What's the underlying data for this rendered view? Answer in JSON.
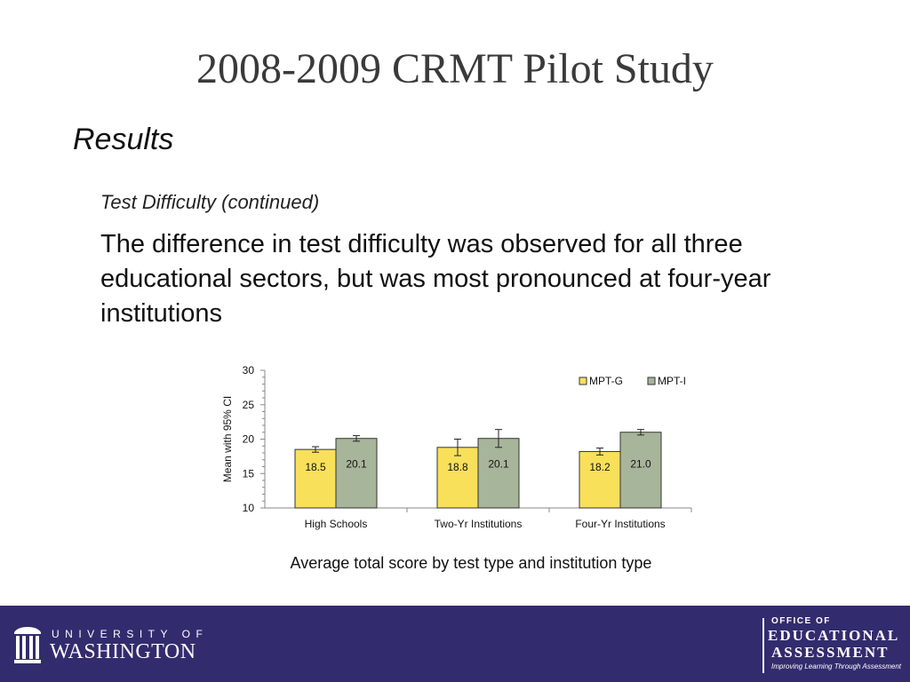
{
  "slide": {
    "title": "2008-2009 CRMT Pilot Study",
    "section": "Results",
    "subheading": "Test Difficulty (continued)",
    "body": "The difference in test difficulty was observed for all three educational sectors, but was most pronounced at four-year institutions",
    "caption": "Average total score by test type and institution type"
  },
  "chart_data": {
    "type": "bar",
    "title": "",
    "xlabel": "",
    "ylabel": "Mean with 95% CI",
    "ylim": [
      10,
      30
    ],
    "yticks": [
      "10",
      "15",
      "20",
      "25",
      "30"
    ],
    "categories": [
      "High Schools",
      "Two-Yr Institutions",
      "Four-Yr Institutions"
    ],
    "legend_position": "top-right",
    "error_bars": true,
    "series": [
      {
        "name": "MPT-G",
        "color": "#f9e05a",
        "values": [
          18.5,
          18.8,
          18.2
        ],
        "labels": [
          "18.5",
          "18.8",
          "18.2"
        ],
        "ci_low": [
          18.1,
          17.6,
          17.7
        ],
        "ci_high": [
          18.9,
          20.0,
          18.7
        ]
      },
      {
        "name": "MPT-I",
        "color": "#a7b59a",
        "values": [
          20.1,
          20.1,
          21.0
        ],
        "labels": [
          "20.1",
          "20.1",
          "21.0"
        ],
        "ci_low": [
          19.7,
          18.8,
          20.6
        ],
        "ci_high": [
          20.5,
          21.4,
          21.4
        ]
      }
    ]
  },
  "footer": {
    "background": "#322c6e",
    "uw_top": "UNIVERSITY OF",
    "uw_bottom": "WASHINGTON",
    "oea_top": "OFFICE OF",
    "oea_mid": "EDUCATIONAL",
    "oea_mid2": "ASSESSMENT",
    "oea_tagline": "Improving Learning Through Assessment"
  }
}
